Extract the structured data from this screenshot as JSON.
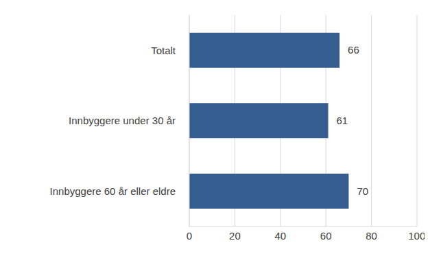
{
  "chart_data": {
    "type": "bar",
    "orientation": "horizontal",
    "categories": [
      "Totalt",
      "Innbyggere under 30 år",
      "Innbyggere 60 år eller eldre"
    ],
    "values": [
      66,
      61,
      70
    ],
    "color": "#355d90",
    "xlim": [
      0,
      100
    ],
    "xticks": [
      0,
      20,
      40,
      60,
      80,
      100
    ],
    "grid": true,
    "data_labels": true
  }
}
